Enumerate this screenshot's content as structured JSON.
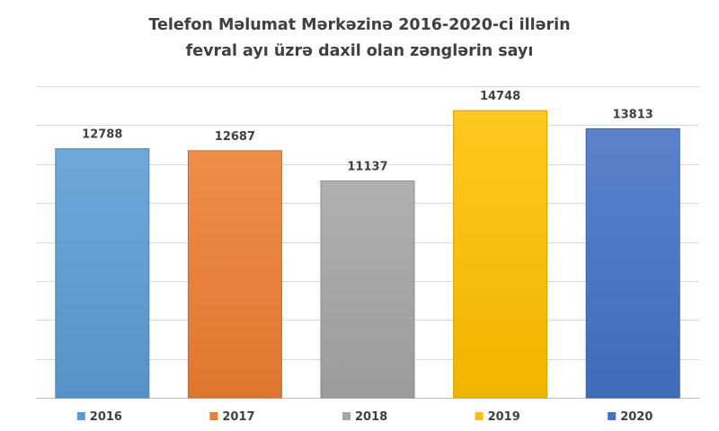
{
  "chart_data": {
    "type": "bar",
    "title_lines": [
      "Telefon Məlumat Mərkəzinə 2016-2020-ci illərin",
      "fevral ayı üzrə daxil olan zənglərin sayı"
    ],
    "categories": [
      "2016",
      "2017",
      "2018",
      "2019",
      "2020"
    ],
    "values": [
      12788,
      12687,
      11137,
      14748,
      13813
    ],
    "colors": [
      "#5b9bd5",
      "#ed7d31",
      "#a5a5a5",
      "#ffc000",
      "#4472c4"
    ],
    "ylim": [
      0,
      16000
    ],
    "grid": true,
    "show_y_tick_labels": false,
    "legend_position": "bottom",
    "data_labels": true
  }
}
